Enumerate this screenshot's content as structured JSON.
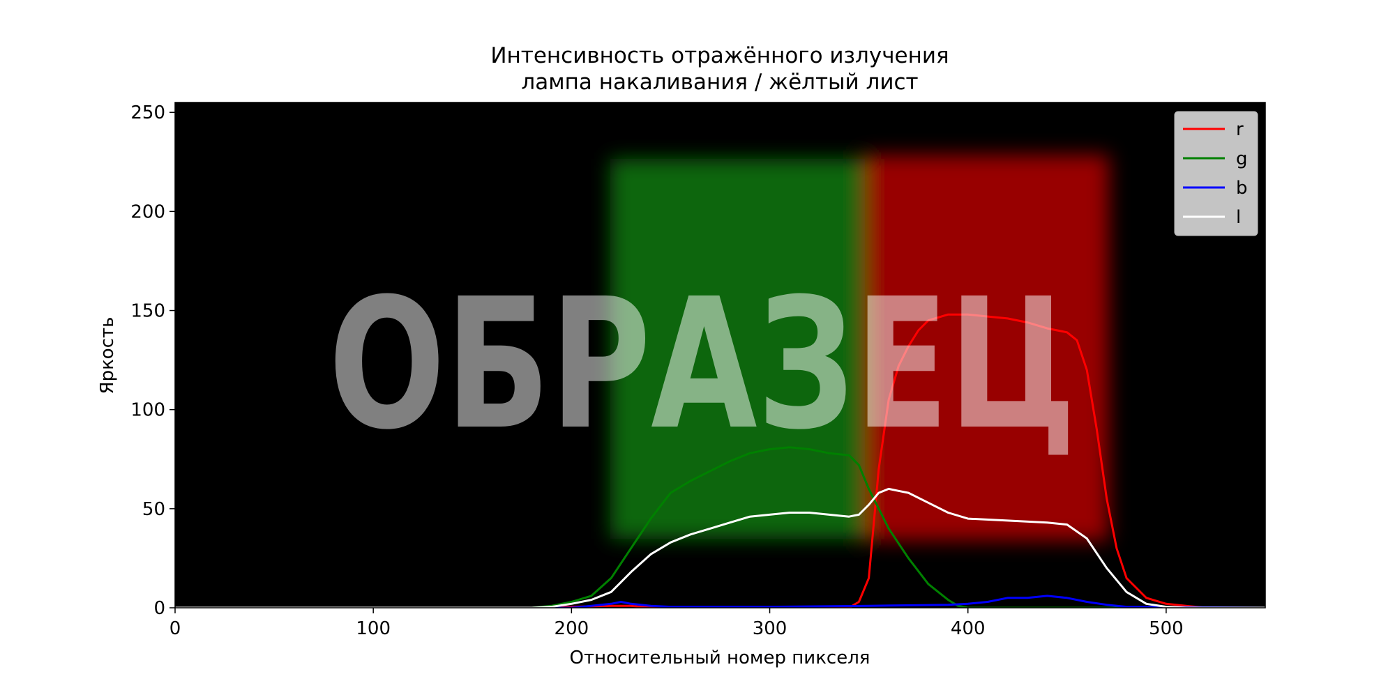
{
  "chart_data": {
    "type": "line",
    "title": "Интенсивность отражённого излучения",
    "subtitle": "лампа накаливания / жёлтый лист",
    "xlabel": "Относительный номер пикселя",
    "ylabel": "Яркость",
    "xlim": [
      0,
      550
    ],
    "ylim": [
      0,
      255
    ],
    "xticks": [
      0,
      100,
      200,
      300,
      400,
      500
    ],
    "yticks": [
      0,
      50,
      100,
      150,
      200,
      250
    ],
    "grid": false,
    "legend_position": "top-right",
    "background_image": "spectrum: green band ~x 220-350 and red band ~x 350-470, rows ~y 35-225 on black",
    "watermark": "ОБРАЗЕЦ",
    "series": [
      {
        "name": "r",
        "color": "#ff0000",
        "x": [
          0,
          180,
          200,
          220,
          230,
          240,
          340,
          345,
          350,
          355,
          360,
          365,
          370,
          375,
          380,
          390,
          400,
          410,
          420,
          430,
          440,
          450,
          455,
          460,
          465,
          470,
          475,
          480,
          490,
          500,
          510,
          520,
          550
        ],
        "y": [
          0,
          0,
          0.5,
          1,
          1,
          0,
          0,
          3,
          15,
          70,
          105,
          122,
          132,
          140,
          145,
          148,
          148,
          147,
          146,
          144,
          141,
          139,
          135,
          120,
          90,
          55,
          30,
          15,
          5,
          2,
          1,
          0,
          0
        ]
      },
      {
        "name": "g",
        "color": "#008000",
        "x": [
          0,
          180,
          190,
          200,
          210,
          220,
          230,
          240,
          250,
          260,
          270,
          280,
          290,
          300,
          310,
          320,
          330,
          340,
          345,
          350,
          360,
          370,
          380,
          390,
          395,
          400,
          420,
          550
        ],
        "y": [
          0,
          0,
          1,
          3,
          6,
          15,
          30,
          45,
          58,
          64,
          69,
          74,
          78,
          80,
          81,
          80,
          78,
          77,
          72,
          60,
          40,
          25,
          12,
          4,
          1,
          0,
          0,
          0
        ]
      },
      {
        "name": "b",
        "color": "#0000ff",
        "x": [
          0,
          200,
          210,
          220,
          225,
          230,
          240,
          250,
          300,
          350,
          390,
          400,
          410,
          420,
          430,
          440,
          450,
          460,
          470,
          480,
          550
        ],
        "y": [
          0,
          0,
          1,
          2,
          3,
          2,
          1,
          0.5,
          0.5,
          1,
          1.5,
          2,
          3,
          5,
          5,
          6,
          5,
          3,
          1.5,
          0.5,
          0
        ]
      },
      {
        "name": "l",
        "color": "#ffffff",
        "x": [
          0,
          180,
          190,
          200,
          210,
          220,
          230,
          240,
          250,
          260,
          270,
          280,
          290,
          300,
          310,
          320,
          330,
          340,
          345,
          350,
          355,
          360,
          365,
          370,
          380,
          390,
          400,
          420,
          440,
          450,
          460,
          470,
          480,
          490,
          500,
          510,
          550
        ],
        "y": [
          0,
          0,
          0.5,
          2,
          4,
          8,
          18,
          27,
          33,
          37,
          40,
          43,
          46,
          47,
          48,
          48,
          47,
          46,
          47,
          52,
          58,
          60,
          59,
          58,
          53,
          48,
          45,
          44,
          43,
          42,
          35,
          20,
          8,
          2,
          0.5,
          0,
          0
        ]
      }
    ]
  }
}
